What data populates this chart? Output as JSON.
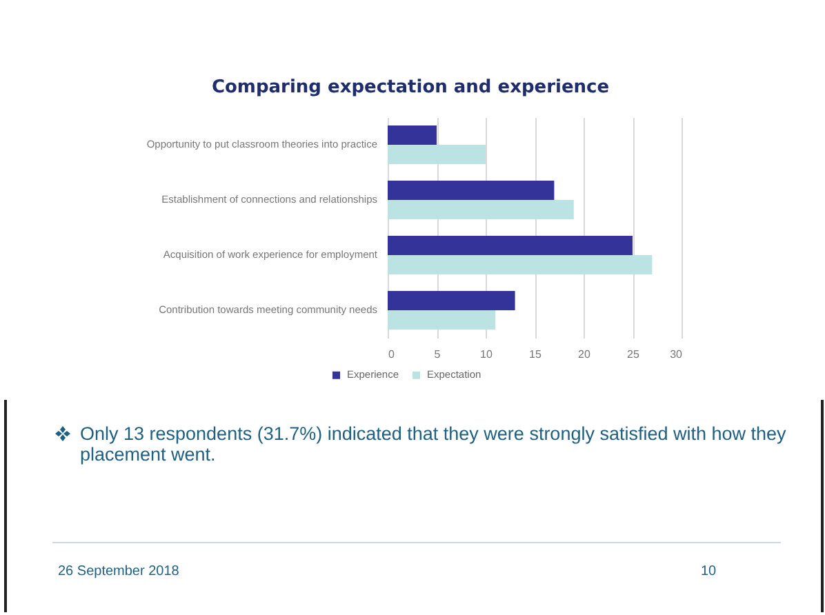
{
  "chart_data": {
    "type": "bar",
    "orientation": "horizontal",
    "title": "Comparing expectation and experience",
    "categories": [
      "Opportunity to put classroom theories into practice",
      "Establishment of connections and relationships",
      "Acquisition of work experience for employment",
      "Contribution towards meeting community needs"
    ],
    "series": [
      {
        "name": "Experience",
        "color": "#333399",
        "values": [
          5,
          17,
          25,
          13
        ]
      },
      {
        "name": "Expectation",
        "color": "#bce3e4",
        "values": [
          10,
          19,
          27,
          11
        ]
      }
    ],
    "xlim": [
      0,
      30
    ],
    "xticks": [
      0,
      5,
      10,
      15,
      20,
      25,
      30
    ],
    "grid": "x",
    "legend": "bottom",
    "annotations": [
      "Only 13 respondents (31.7%) indicated that they were strongly satisfied with how they placement went.",
      "26 September 2018",
      "10"
    ]
  }
}
